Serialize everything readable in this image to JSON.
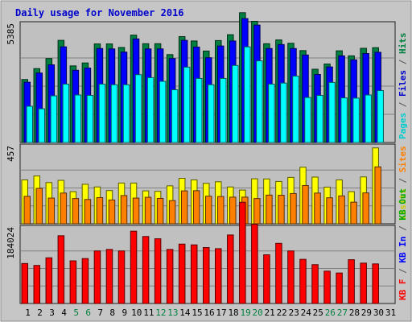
{
  "chart_data": {
    "type": "bar",
    "title": "Daily usage for November 2016",
    "x": [
      "1",
      "2",
      "3",
      "4",
      "5",
      "6",
      "7",
      "8",
      "9",
      "10",
      "11",
      "12",
      "13",
      "14",
      "15",
      "16",
      "17",
      "18",
      "19",
      "20",
      "21",
      "22",
      "23",
      "24",
      "25",
      "26",
      "27",
      "28",
      "29",
      "30",
      "31"
    ],
    "weekend_days": [
      5,
      6,
      12,
      13,
      19,
      20,
      26,
      27
    ],
    "panels": [
      {
        "ymax_label": "5385",
        "ymax": 5385,
        "side_labels": [
          {
            "text": "Pages",
            "color": "#00cccc"
          },
          {
            "text": " / ",
            "color": "#555555"
          },
          {
            "text": "Files",
            "color": "#0000cc"
          },
          {
            "text": " / ",
            "color": "#555555"
          },
          {
            "text": "Hits",
            "color": "#008040"
          }
        ],
        "series": [
          {
            "name": "Hits",
            "color": "#008040",
            "values": [
              3010,
              3530,
              4010,
              4880,
              3660,
              3800,
              4710,
              4710,
              4540,
              5130,
              4720,
              4720,
              4200,
              5060,
              4850,
              4370,
              4870,
              5150,
              6200,
              5790,
              4720,
              4900,
              4740,
              4390,
              3500,
              3750,
              4380,
              4140,
              4500,
              4530
            ]
          },
          {
            "name": "Files",
            "color": "#0000ff",
            "values": [
              2880,
              3320,
              3710,
              4570,
              3450,
              3560,
              4490,
              4470,
              4320,
              4950,
              4470,
              4470,
              4010,
              4880,
              4560,
              4050,
              4610,
              4850,
              5920,
              5610,
              4490,
              4680,
              4490,
              4180,
              3250,
              3610,
              4140,
              3950,
              4250,
              4310
            ]
          },
          {
            "name": "Pages",
            "color": "#00ffff",
            "values": [
              1730,
              1610,
              2230,
              2790,
              2270,
              2250,
              2790,
              2760,
              2760,
              3240,
              3100,
              2920,
              2520,
              3600,
              3060,
              2760,
              3060,
              3680,
              4570,
              3900,
              2790,
              2840,
              3170,
              2150,
              2250,
              2870,
              2130,
              2120,
              2270,
              2480
            ]
          }
        ]
      },
      {
        "ymax_label": "457",
        "ymax": 457,
        "side_labels": [
          {
            "text": "Visits",
            "color": "#cccc00"
          },
          {
            "text": " / ",
            "color": "#555555"
          },
          {
            "text": "Sites",
            "color": "#ff8000"
          }
        ],
        "series": [
          {
            "name": "Visits",
            "color": "#ffff00",
            "values": [
              280,
              305,
              263,
              277,
              205,
              252,
              235,
              212,
              260,
              260,
              210,
              207,
              242,
              290,
              280,
              258,
              268,
              235,
              215,
              287,
              286,
              270,
              296,
              361,
              298,
              234,
              280,
              205,
              299,
              484
            ]
          },
          {
            "name": "Sites",
            "color": "#ff8000",
            "values": [
              175,
              226,
              164,
              196,
              161,
              155,
              167,
              152,
              180,
              164,
              169,
              162,
              148,
              210,
              211,
              176,
              174,
              170,
              170,
              161,
              183,
              182,
              193,
              244,
              196,
              166,
              178,
              138,
              197,
              363
            ]
          }
        ]
      },
      {
        "ymax_label": "184024",
        "ymax": 184024,
        "side_labels": [
          {
            "text": "KB F",
            "color": "#ff0000"
          },
          {
            "text": " / ",
            "color": "#555555"
          },
          {
            "text": "KB In",
            "color": "#0000ff"
          },
          {
            "text": " / ",
            "color": "#555555"
          },
          {
            "text": "KB Out",
            "color": "#00aa00"
          }
        ],
        "series": [
          {
            "name": "KB F",
            "color": "#ff0000",
            "values": [
              105000,
              100000,
              120000,
              178000,
              112000,
              118000,
              138000,
              142000,
              138000,
              190000,
              176000,
              170000,
              142000,
              156000,
              154000,
              147000,
              144000,
              180000,
              266000,
              208000,
              128000,
              158000,
              138000,
              116000,
              102000,
              85000,
              80000,
              115000,
              106000,
              104000
            ]
          }
        ]
      }
    ]
  }
}
